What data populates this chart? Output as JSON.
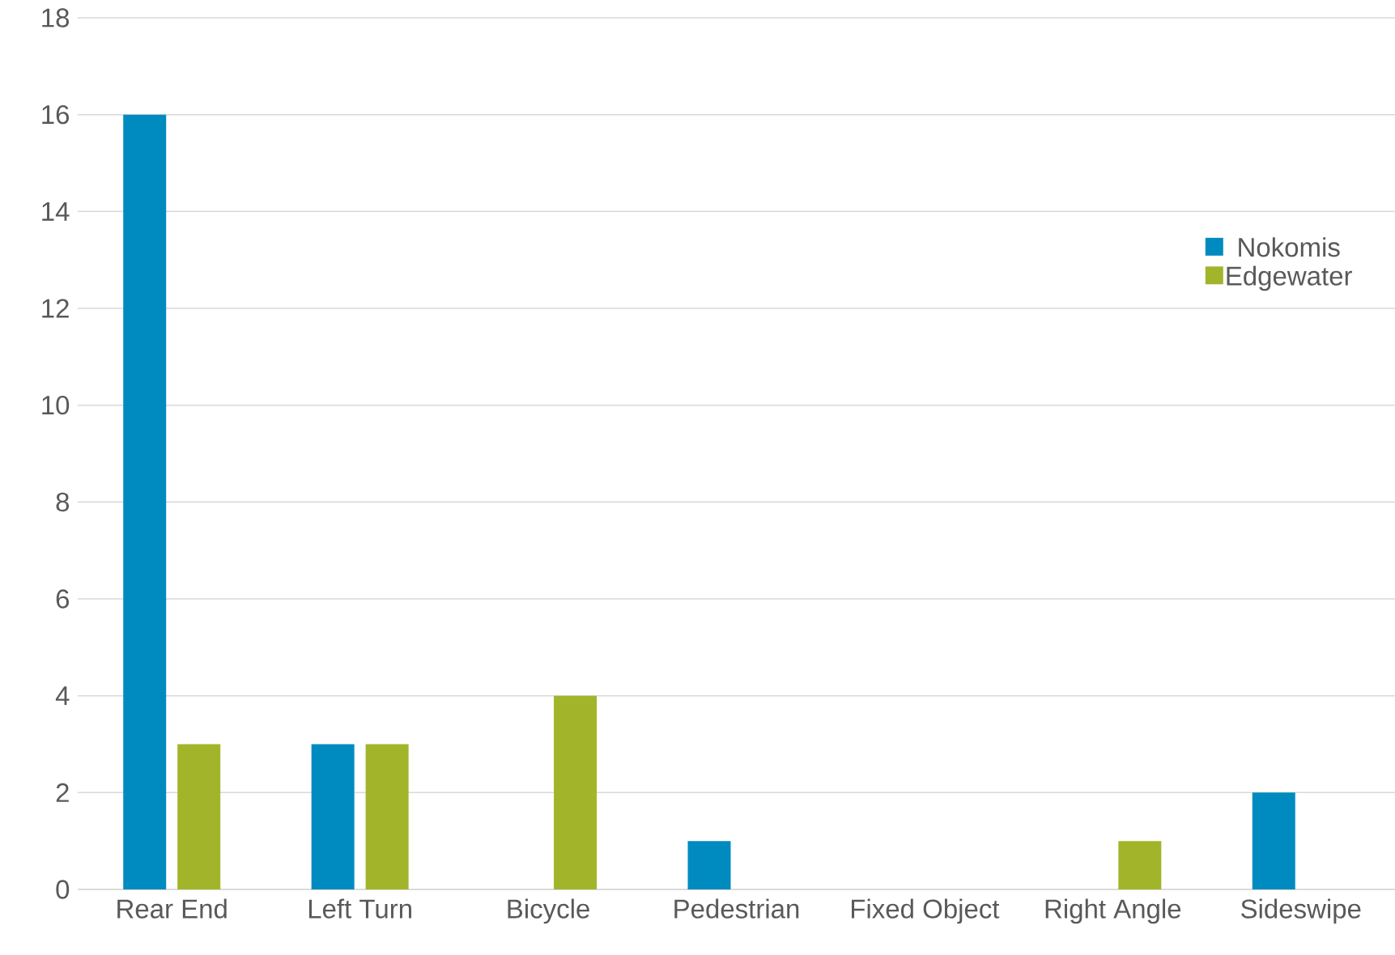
{
  "chart_data": {
    "type": "bar",
    "categories": [
      "Rear End",
      "Left Turn",
      "Bicycle",
      "Pedestrian",
      "Fixed Object",
      "Right Angle",
      "Sideswipe"
    ],
    "series": [
      {
        "name": "Nokomis",
        "color": "#008bc0",
        "values": [
          16,
          3,
          0,
          1,
          0,
          0,
          2
        ]
      },
      {
        "name": "Edgewater",
        "color": "#a2b52a",
        "values": [
          3,
          3,
          4,
          0,
          0,
          1,
          0
        ]
      }
    ],
    "ylim": [
      0,
      18
    ],
    "yticks": [
      0,
      2,
      4,
      6,
      8,
      10,
      12,
      14,
      16,
      18
    ],
    "grid": "y",
    "legend": "right"
  }
}
